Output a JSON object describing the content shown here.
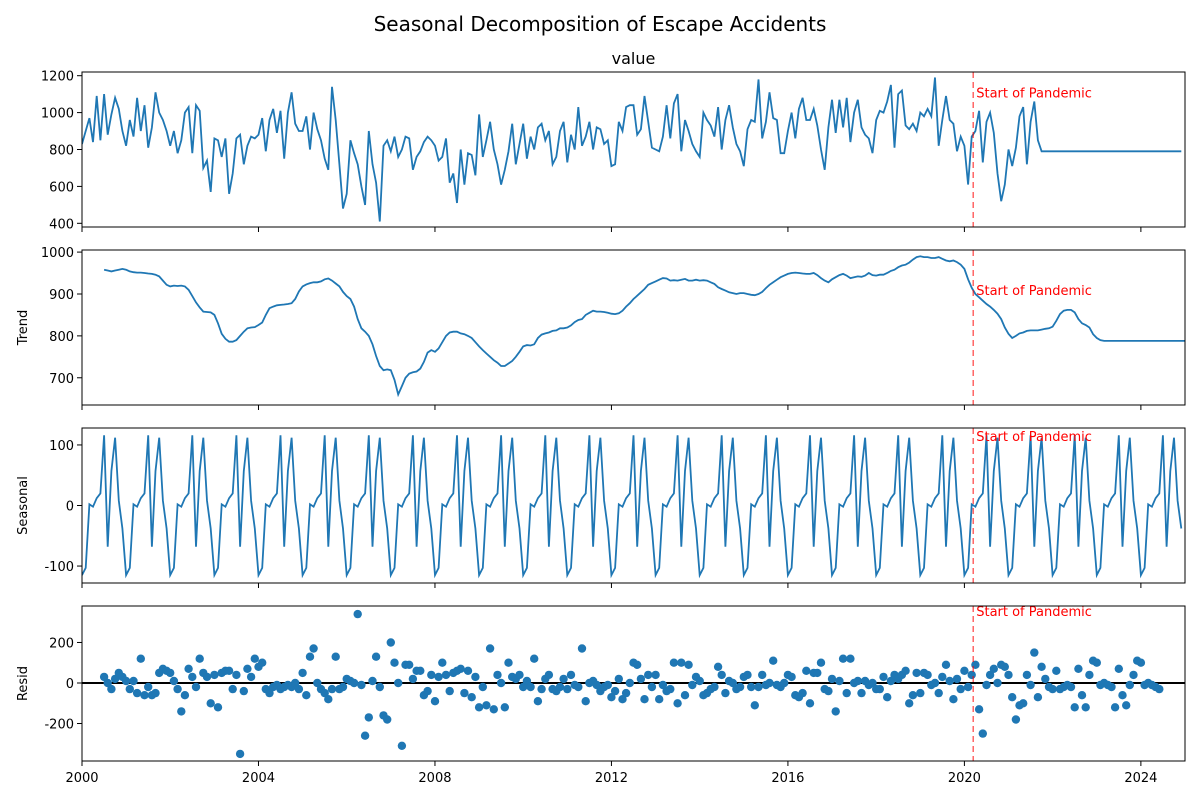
{
  "figure_title": "Seasonal Decomposition of Escape Accidents",
  "annotation_text": "Start of Pandemic",
  "colors": {
    "line": "#1f77b4",
    "marker": "#1f77b4",
    "annotation": "#ff0000",
    "axis": "#000000",
    "zero_line": "#000000"
  },
  "chart_data": [
    {
      "type": "line",
      "panel": "observed",
      "title": "value",
      "ylabel": "",
      "xlim": [
        2000,
        2025.0
      ],
      "ylim": [
        380,
        1220
      ],
      "yticks": [
        400,
        600,
        800,
        1000,
        1200
      ],
      "xticks": [],
      "grid": false,
      "vline_x": 2020.2,
      "annotation": "Start of Pandemic",
      "annotation_y": 1110,
      "series": [
        {
          "x_start": 2000.0,
          "step": 0.083333,
          "values": [
            830,
            900,
            970,
            840,
            1090,
            850,
            1100,
            880,
            990,
            1080,
            1020,
            900,
            820,
            960,
            870,
            1080,
            900,
            1040,
            810,
            920,
            1110,
            1000,
            960,
            900,
            820,
            900,
            780,
            850,
            1000,
            1030,
            780,
            1040,
            1010,
            700,
            740,
            570,
            860,
            850,
            760,
            860,
            560,
            670,
            860,
            880,
            720,
            820,
            870,
            860,
            880,
            970,
            790,
            960,
            1020,
            890,
            1010,
            750,
            1000,
            1110,
            940,
            900,
            900,
            980,
            800,
            1000,
            910,
            850,
            750,
            690,
            1140,
            960,
            720,
            480,
            560,
            850,
            780,
            720,
            600,
            500,
            900,
            720,
            620,
            410,
            820,
            850,
            790,
            870,
            760,
            800,
            870,
            860,
            690,
            760,
            790,
            840,
            870,
            850,
            820,
            740,
            760,
            860,
            620,
            670,
            510,
            800,
            610,
            780,
            770,
            660,
            990,
            760,
            850,
            950,
            800,
            720,
            610,
            690,
            790,
            940,
            720,
            830,
            940,
            750,
            870,
            800,
            920,
            940,
            850,
            900,
            720,
            760,
            900,
            950,
            730,
            880,
            800,
            1030,
            820,
            870,
            950,
            800,
            920,
            910,
            830,
            850,
            710,
            720,
            950,
            900,
            1030,
            1040,
            1040,
            880,
            910,
            1090,
            950,
            810,
            800,
            790,
            870,
            1040,
            860,
            1050,
            1100,
            790,
            960,
            900,
            830,
            790,
            760,
            1000,
            960,
            930,
            870,
            1030,
            800,
            960,
            1040,
            920,
            830,
            790,
            710,
            910,
            960,
            950,
            1180,
            860,
            950,
            1110,
            970,
            960,
            780,
            780,
            900,
            1000,
            860,
            1020,
            1080,
            960,
            960,
            1020,
            930,
            800,
            690,
            920,
            1070,
            890,
            1070,
            920,
            1080,
            840,
            1000,
            1070,
            920,
            880,
            860,
            780,
            960,
            1010,
            1000,
            1060,
            1150,
            810,
            1100,
            1120,
            930,
            910,
            940,
            900,
            1000,
            980,
            1020,
            980,
            1190,
            820,
            960,
            1090,
            960,
            940,
            790,
            870,
            820,
            610,
            870,
            900,
            1010,
            730,
            950,
            1000,
            890,
            670,
            520,
            610,
            800,
            710,
            810,
            980,
            1030,
            720,
            950,
            1060,
            850,
            790,
            790,
            790,
            790,
            790,
            790,
            790,
            790,
            790,
            790,
            790,
            790,
            790,
            790,
            790,
            790,
            790,
            790,
            790,
            790,
            790,
            790,
            790,
            790,
            790,
            790,
            790,
            790,
            790,
            790,
            790,
            790,
            790,
            790,
            790,
            790,
            790,
            790,
            790
          ]
        }
      ]
    },
    {
      "type": "line",
      "panel": "trend",
      "title": "",
      "ylabel": "Trend",
      "xlim": [
        2000,
        2025.0
      ],
      "ylim": [
        635,
        1005
      ],
      "yticks": [
        700,
        800,
        900,
        1000
      ],
      "xticks": [],
      "grid": false,
      "vline_x": 2020.2,
      "annotation": "Start of Pandemic",
      "annotation_y": 910,
      "series": [
        {
          "x_start": 2000.5,
          "step": 0.083333,
          "values": [
            958,
            956,
            954,
            956,
            958,
            960,
            958,
            954,
            952,
            951,
            951,
            950,
            949,
            948,
            946,
            942,
            932,
            922,
            918,
            920,
            919,
            920,
            918,
            910,
            895,
            880,
            868,
            858,
            857,
            856,
            850,
            830,
            805,
            793,
            786,
            786,
            790,
            800,
            810,
            818,
            820,
            821,
            826,
            832,
            850,
            866,
            870,
            873,
            874,
            875,
            876,
            878,
            888,
            906,
            918,
            923,
            926,
            928,
            928,
            930,
            935,
            937,
            932,
            925,
            918,
            905,
            895,
            888,
            870,
            840,
            818,
            810,
            800,
            780,
            752,
            728,
            718,
            720,
            718,
            695,
            660,
            680,
            700,
            710,
            713,
            715,
            722,
            738,
            760,
            766,
            762,
            770,
            785,
            800,
            808,
            810,
            810,
            806,
            804,
            800,
            795,
            785,
            775,
            766,
            758,
            750,
            742,
            736,
            728,
            728,
            734,
            740,
            750,
            762,
            775,
            778,
            777,
            780,
            795,
            803,
            806,
            808,
            812,
            813,
            818,
            818,
            820,
            825,
            833,
            838,
            840,
            850,
            855,
            860,
            858,
            858,
            857,
            855,
            853,
            852,
            854,
            860,
            870,
            878,
            888,
            896,
            904,
            912,
            922,
            926,
            930,
            934,
            938,
            937,
            932,
            933,
            932,
            934,
            936,
            932,
            932,
            934,
            932,
            933,
            932,
            928,
            924,
            916,
            912,
            908,
            904,
            902,
            900,
            902,
            902,
            900,
            898,
            897,
            900,
            905,
            914,
            922,
            928,
            934,
            940,
            944,
            948,
            950,
            951,
            950,
            949,
            948,
            948,
            950,
            945,
            938,
            932,
            928,
            935,
            940,
            945,
            948,
            944,
            938,
            940,
            942,
            941,
            944,
            950,
            945,
            944,
            946,
            946,
            950,
            955,
            958,
            964,
            968,
            970,
            975,
            982,
            988,
            990,
            988,
            988,
            986,
            986,
            988,
            984,
            980,
            978,
            980,
            976,
            970,
            960,
            935,
            915,
            900,
            892,
            884,
            876,
            870,
            862,
            853,
            840,
            820,
            805,
            795,
            800,
            806,
            808,
            812,
            813,
            813,
            813,
            815,
            817,
            818,
            822,
            836,
            852,
            860,
            862,
            862,
            856,
            840,
            830,
            826,
            820,
            804,
            795,
            790,
            788,
            788,
            788,
            788,
            788,
            788,
            788,
            788,
            788,
            788,
            788,
            788,
            788,
            788,
            788,
            788,
            788,
            788,
            788,
            788,
            788,
            788,
            788,
            788,
            788,
            788,
            788,
            788
          ]
        }
      ]
    },
    {
      "type": "line",
      "panel": "seasonal",
      "title": "",
      "ylabel": "Seasonal",
      "xlim": [
        2000,
        2025.0
      ],
      "ylim": [
        -128,
        128
      ],
      "yticks": [
        -100,
        0,
        100
      ],
      "xticks": [],
      "grid": false,
      "vline_x": 2020.2,
      "annotation": "Start of Pandemic",
      "annotation_y": 115,
      "series": [
        {
          "x_start": 2000.0,
          "step": 0.083333,
          "repeat_years": 25,
          "pattern": [
            -115,
            -103,
            2,
            -2,
            12,
            20,
            116,
            -68,
            57,
            112,
            8,
            -38
          ]
        }
      ]
    },
    {
      "type": "scatter",
      "panel": "resid",
      "title": "",
      "ylabel": "Resid",
      "xlim": [
        2000,
        2025.0
      ],
      "ylim": [
        -385,
        380
      ],
      "yticks": [
        -200,
        0,
        200
      ],
      "xticks": [
        2000,
        2004,
        2008,
        2012,
        2016,
        2020,
        2024
      ],
      "grid": false,
      "zero_line": true,
      "vline_x": 2020.2,
      "annotation": "Start of Pandemic",
      "annotation_y": 355,
      "series": [
        {
          "x_start": 2000.5,
          "step": 0.083333,
          "values": [
            30,
            0,
            -30,
            20,
            50,
            30,
            10,
            -30,
            10,
            -50,
            120,
            -60,
            -20,
            -60,
            -50,
            50,
            70,
            60,
            50,
            10,
            -30,
            -140,
            -60,
            70,
            30,
            -20,
            120,
            50,
            30,
            -100,
            40,
            -120,
            50,
            60,
            60,
            -30,
            40,
            -350,
            -40,
            70,
            30,
            120,
            80,
            100,
            -30,
            -50,
            -20,
            -10,
            -30,
            -20,
            -10,
            -20,
            0,
            -30,
            50,
            -60,
            130,
            170,
            0,
            -30,
            -50,
            -80,
            -30,
            130,
            -30,
            -20,
            20,
            10,
            0,
            340,
            -10,
            -260,
            -170,
            10,
            130,
            -20,
            -160,
            -180,
            200,
            100,
            0,
            -310,
            90,
            90,
            20,
            60,
            60,
            -60,
            -40,
            40,
            -90,
            30,
            100,
            40,
            -40,
            50,
            60,
            70,
            -50,
            60,
            -70,
            30,
            -120,
            -20,
            -110,
            170,
            -130,
            40,
            0,
            -120,
            100,
            30,
            20,
            40,
            -20,
            10,
            -20,
            120,
            -90,
            -30,
            20,
            40,
            -30,
            -40,
            -20,
            20,
            -30,
            40,
            -10,
            -20,
            170,
            -90,
            0,
            10,
            -10,
            -40,
            -20,
            -10,
            -70,
            -40,
            20,
            -80,
            -50,
            0,
            100,
            90,
            20,
            -80,
            40,
            -20,
            40,
            -80,
            -10,
            -40,
            -30,
            100,
            -100,
            100,
            -60,
            90,
            -10,
            30,
            10,
            -60,
            -50,
            -30,
            -20,
            80,
            40,
            -50,
            10,
            0,
            -30,
            -20,
            30,
            40,
            -20,
            -110,
            -20,
            40,
            -10,
            0,
            110,
            -10,
            -20,
            0,
            40,
            30,
            -60,
            -70,
            -50,
            60,
            -100,
            50,
            50,
            100,
            -30,
            -40,
            20,
            -140,
            10,
            120,
            -50,
            120,
            0,
            10,
            -50,
            10,
            -10,
            0,
            -30,
            -30,
            30,
            -70,
            10,
            40,
            20,
            40,
            60,
            -100,
            -60,
            50,
            -50,
            50,
            40,
            -10,
            0,
            -50,
            30,
            90,
            10,
            -80,
            20,
            -30,
            60,
            -20,
            40,
            90,
            -130,
            -250,
            -10,
            40,
            70,
            0,
            90,
            80,
            40,
            -70,
            -180,
            -110,
            -100,
            40,
            -10,
            150,
            -70,
            80,
            20,
            -20,
            -30,
            60,
            -30,
            -20,
            -10,
            -20,
            -120,
            70,
            -60,
            -120,
            40,
            110,
            100,
            -10,
            0,
            -10,
            -20,
            -120,
            70,
            -60,
            -110,
            -10,
            40,
            110,
            100,
            -10,
            0,
            -10,
            -20,
            -30
          ]
        }
      ]
    }
  ],
  "x_tick_labels": [
    "2000",
    "2004",
    "2008",
    "2012",
    "2016",
    "2020",
    "2024"
  ]
}
